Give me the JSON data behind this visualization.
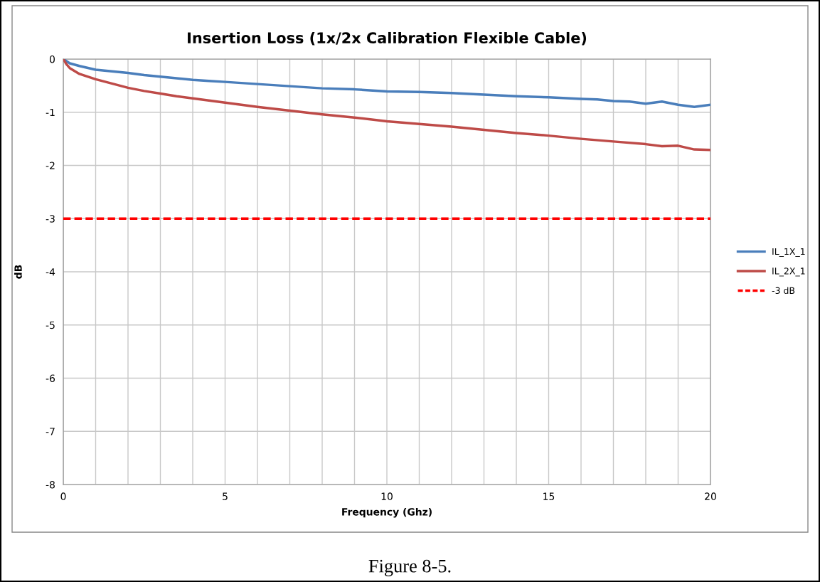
{
  "chart_data": {
    "type": "line",
    "title": "Insertion Loss (1x/2x Calibration Flexible Cable)",
    "xlabel": "Frequency (Ghz)",
    "ylabel": "dB",
    "series": [
      {
        "name": "IL_1X_1",
        "color": "#4a7ebb",
        "x": [
          0,
          0.2,
          0.5,
          1,
          1.5,
          2,
          2.5,
          3,
          3.5,
          4,
          4.5,
          5,
          6,
          7,
          8,
          9,
          10,
          11,
          12,
          13,
          14,
          15,
          16,
          16.5,
          17,
          17.5,
          18,
          18.5,
          19,
          19.5,
          20
        ],
        "values": [
          0,
          -0.08,
          -0.13,
          -0.2,
          -0.23,
          -0.26,
          -0.3,
          -0.33,
          -0.36,
          -0.39,
          -0.41,
          -0.43,
          -0.47,
          -0.51,
          -0.55,
          -0.57,
          -0.61,
          -0.62,
          -0.64,
          -0.67,
          -0.7,
          -0.72,
          -0.75,
          -0.76,
          -0.79,
          -0.8,
          -0.84,
          -0.8,
          -0.86,
          -0.9,
          -0.86
        ]
      },
      {
        "name": "IL_2X_1",
        "color": "#be4b48",
        "x": [
          0,
          0.1,
          0.2,
          0.5,
          1,
          1.5,
          2,
          2.5,
          3,
          3.5,
          4,
          4.5,
          5,
          6,
          7,
          8,
          9,
          10,
          11,
          12,
          13,
          14,
          15,
          16,
          17,
          18,
          18.5,
          19,
          19.5,
          20
        ],
        "values": [
          0,
          -0.1,
          -0.17,
          -0.28,
          -0.38,
          -0.46,
          -0.54,
          -0.6,
          -0.65,
          -0.7,
          -0.74,
          -0.78,
          -0.82,
          -0.9,
          -0.97,
          -1.04,
          -1.1,
          -1.17,
          -1.22,
          -1.27,
          -1.33,
          -1.39,
          -1.44,
          -1.5,
          -1.55,
          -1.6,
          -1.64,
          -1.63,
          -1.7,
          -1.71
        ]
      }
    ],
    "ref_lines": [
      {
        "axis": "y",
        "value": -3,
        "label": "-3 dB",
        "color": "#ff0000",
        "line_style": "dashed"
      }
    ],
    "xlim": [
      0,
      20
    ],
    "ylim": [
      -8,
      0
    ],
    "xticks": [
      0,
      {
        "value": 1,
        "label": null
      },
      {
        "value": 2,
        "label": null
      },
      {
        "value": 3,
        "label": null
      },
      {
        "value": 4,
        "label": null
      },
      5,
      {
        "value": 6,
        "label": null
      },
      {
        "value": 7,
        "label": null
      },
      {
        "value": 8,
        "label": null
      },
      {
        "value": 9,
        "label": null
      },
      10,
      {
        "value": 11,
        "label": null
      },
      {
        "value": 12,
        "label": null
      },
      {
        "value": 13,
        "label": null
      },
      {
        "value": 14,
        "label": null
      },
      15,
      {
        "value": 16,
        "label": null
      },
      {
        "value": 17,
        "label": null
      },
      {
        "value": 18,
        "label": null
      },
      {
        "value": 19,
        "label": null
      },
      20
    ],
    "yticks": [
      -8,
      -7,
      -6,
      -5,
      -4,
      -3,
      -2,
      -1,
      0
    ],
    "grid": true,
    "legend": "right",
    "marker": "none",
    "line_style": "solid",
    "annotations": [
      "Figure 8-5."
    ]
  }
}
